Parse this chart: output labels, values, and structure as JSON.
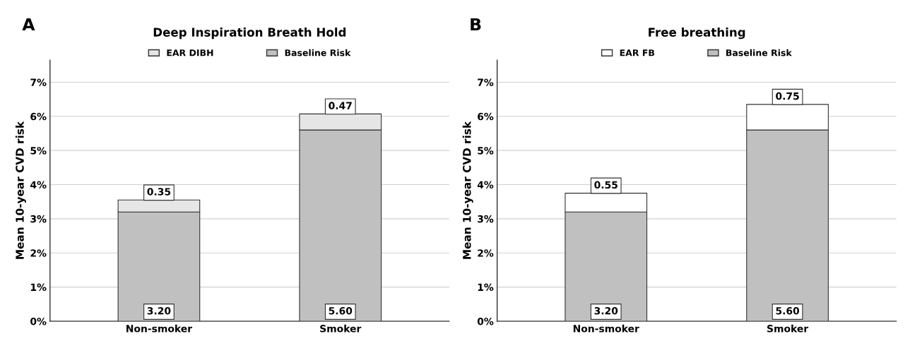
{
  "chart_data": [
    {
      "type": "bar",
      "title": "Deep Inspiration Breath Hold",
      "ylabel": "Mean 10-year CVD risk",
      "annotations": [
        "A"
      ],
      "categories": [
        "Non-smoker",
        "Smoker"
      ],
      "stacked": true,
      "legend": "top",
      "grid": "y",
      "ylim": [
        0,
        7.65
      ],
      "yticks": [
        {
          "value": 0,
          "label": "0%"
        },
        {
          "value": 1,
          "label": "1%"
        },
        {
          "value": 2,
          "label": "2%"
        },
        {
          "value": 3,
          "label": "3%"
        },
        {
          "value": 4,
          "label": "4%"
        },
        {
          "value": 5,
          "label": "5%"
        },
        {
          "value": 6,
          "label": "6%"
        },
        {
          "value": 7,
          "label": "7%"
        }
      ],
      "series": [
        {
          "name": "Baseline Risk",
          "color": "#c0c0c0",
          "values": [
            3.2,
            5.6
          ],
          "value_labels": [
            "3.20",
            "5.60"
          ]
        },
        {
          "name": "EAR DIBH",
          "color": "#e6e6e6",
          "values": [
            0.35,
            0.47
          ],
          "value_labels": [
            "0.35",
            "0.47"
          ]
        }
      ]
    },
    {
      "type": "bar",
      "title": "Free breathing",
      "ylabel": "Mean 10-year CVD risk",
      "annotations": [
        "B"
      ],
      "categories": [
        "Non-smoker",
        "Smoker"
      ],
      "stacked": true,
      "legend": "top",
      "grid": "y",
      "ylim": [
        0,
        7.65
      ],
      "yticks": [
        {
          "value": 0,
          "label": "0%"
        },
        {
          "value": 1,
          "label": "1%"
        },
        {
          "value": 2,
          "label": "2%"
        },
        {
          "value": 3,
          "label": "3%"
        },
        {
          "value": 4,
          "label": "4%"
        },
        {
          "value": 5,
          "label": "5%"
        },
        {
          "value": 6,
          "label": "6%"
        },
        {
          "value": 7,
          "label": "7%"
        }
      ],
      "series": [
        {
          "name": "Baseline Risk",
          "color": "#c0c0c0",
          "values": [
            3.2,
            5.6
          ],
          "value_labels": [
            "3.20",
            "5.60"
          ]
        },
        {
          "name": "EAR FB",
          "color": "#ffffff",
          "values": [
            0.55,
            0.75
          ],
          "value_labels": [
            "0.55",
            "0.75"
          ]
        }
      ]
    }
  ]
}
